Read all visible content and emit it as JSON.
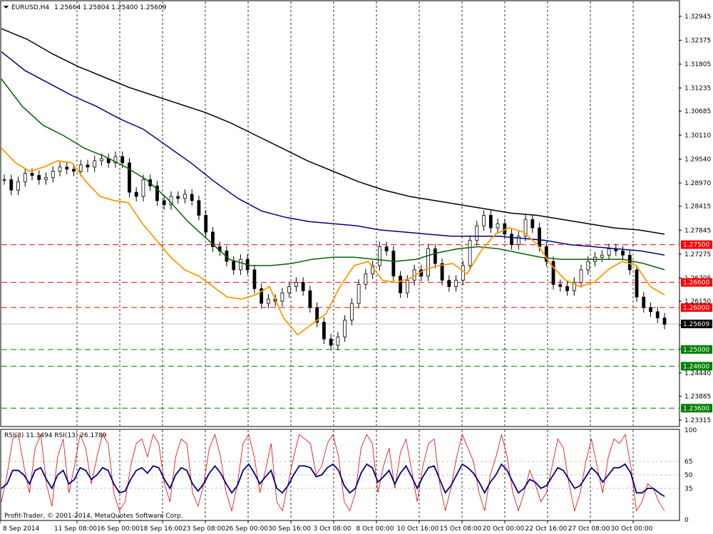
{
  "header": {
    "symbol": "EURUSD,H4",
    "ohlc": "1.25664 1.25804 1.25400 1.25609"
  },
  "rsi_header": "RSI(3) 11.3494  RSI(13) 26.1789",
  "footer": "Profit-Trader, © 2001-2014, MetaQuotes Software Corp.",
  "colors": {
    "ema_fast": "#ff9900",
    "ema_mid": "#006400",
    "ema_slow": "#000080",
    "ema_long": "#000000",
    "resistance": "#ff0000",
    "support": "#008000",
    "rsi_fast": "#e00000",
    "rsi_slow": "#000080"
  },
  "chart_data": {
    "type": "candlestick",
    "instrument": "EURUSD",
    "timeframe": "H4",
    "y_ticks": [
      "1.32945",
      "1.32375",
      "1.31805",
      "1.31235",
      "1.30685",
      "1.30110",
      "1.29540",
      "1.28970",
      "1.28415",
      "1.27845",
      "1.27275",
      "1.26705",
      "1.26150",
      "1.25580",
      "1.25010",
      "1.24440",
      "1.23885",
      "1.23315"
    ],
    "ylim": [
      1.2318,
      1.333
    ],
    "price_tags": [
      {
        "value": 1.275,
        "label": "1.27500",
        "kind": "resistance"
      },
      {
        "value": 1.266,
        "label": "1.26600",
        "kind": "resistance"
      },
      {
        "value": 1.26,
        "label": "1.26000",
        "kind": "resistance"
      },
      {
        "value": 1.25609,
        "label": "1.25609",
        "kind": "current"
      },
      {
        "value": 1.25,
        "label": "1.25000",
        "kind": "support"
      },
      {
        "value": 1.246,
        "label": "1.24600",
        "kind": "support"
      },
      {
        "value": 1.236,
        "label": "1.23600",
        "kind": "support"
      }
    ],
    "x_labels": [
      "8 Sep 2014",
      "11 Sep 08:00",
      "16 Sep 00:00",
      "18 Sep 16:00",
      "23 Sep 08:00",
      "26 Sep 00:00",
      "30 Sep 16:00",
      "3 Oct 08:00",
      "8 Oct 00:00",
      "10 Oct 16:00",
      "15 Oct 08:00",
      "20 Oct 00:00",
      "22 Oct 16:00",
      "27 Oct 08:00",
      "30 Oct 00:00"
    ],
    "close_path": [
      1.2905,
      1.288,
      1.29,
      1.292,
      1.2915,
      1.2905,
      1.291,
      1.2925,
      1.2935,
      1.293,
      1.2925,
      1.294,
      1.2935,
      1.295,
      1.2955,
      1.2945,
      1.296,
      1.2945,
      1.2875,
      1.2865,
      1.2905,
      1.289,
      1.2855,
      1.2845,
      1.2865,
      1.286,
      1.287,
      1.2855,
      1.282,
      1.278,
      1.2745,
      1.2735,
      1.271,
      1.269,
      1.2715,
      1.269,
      1.2645,
      1.261,
      1.262,
      1.2615,
      1.2635,
      1.265,
      1.266,
      1.264,
      1.26,
      1.2565,
      1.2525,
      1.251,
      1.253,
      1.257,
      1.261,
      1.2655,
      1.268,
      1.27,
      1.2745,
      1.2735,
      1.2675,
      1.2635,
      1.2665,
      1.269,
      1.2675,
      1.274,
      1.2705,
      1.2665,
      1.265,
      1.2665,
      1.27,
      1.276,
      1.2795,
      1.282,
      1.279,
      1.28,
      1.2775,
      1.275,
      1.277,
      1.281,
      1.279,
      1.2745,
      1.271,
      1.2655,
      1.265,
      1.264,
      1.266,
      1.269,
      1.271,
      1.272,
      1.2725,
      1.274,
      1.2735,
      1.2725,
      1.269,
      1.2625,
      1.26,
      1.259,
      1.2575,
      1.256
    ],
    "ema_fast": [
      1.298,
      1.2945,
      1.2925,
      1.2935,
      1.295,
      1.2945,
      1.29,
      1.2865,
      1.2855,
      1.285,
      1.28,
      1.276,
      1.272,
      1.269,
      1.2675,
      1.265,
      1.2625,
      1.262,
      1.263,
      1.265,
      1.2575,
      1.2535,
      1.256,
      1.2585,
      1.265,
      1.27,
      1.271,
      1.2665,
      1.266,
      1.267,
      1.269,
      1.27,
      1.2705,
      1.268,
      1.2735,
      1.2775,
      1.279,
      1.278,
      1.275,
      1.27,
      1.2665,
      1.265,
      1.266,
      1.269,
      1.271,
      1.27,
      1.265,
      1.263
    ],
    "ema_mid": [
      1.3145,
      1.308,
      1.3035,
      1.301,
      1.298,
      1.296,
      1.2935,
      1.2905,
      1.286,
      1.2805,
      1.276,
      1.2715,
      1.27,
      1.27,
      1.2705,
      1.2715,
      1.272,
      1.272,
      1.2715,
      1.271,
      1.2715,
      1.273,
      1.274,
      1.2745,
      1.274,
      1.273,
      1.272,
      1.2715,
      1.2715,
      1.2715,
      1.2715,
      1.2705,
      1.269
    ],
    "ema_slow": [
      1.321,
      1.3165,
      1.3135,
      1.3105,
      1.308,
      1.305,
      1.3025,
      1.2985,
      1.2945,
      1.29,
      1.286,
      1.283,
      1.2815,
      1.2805,
      1.28,
      1.2795,
      1.2785,
      1.278,
      1.2775,
      1.277,
      1.277,
      1.277,
      1.2765,
      1.276,
      1.275,
      1.2745,
      1.274,
      1.2735,
      1.2725
    ],
    "ema_long": [
      1.3265,
      1.324,
      1.3205,
      1.3175,
      1.315,
      1.3125,
      1.3105,
      1.3085,
      1.3065,
      1.304,
      1.301,
      1.298,
      1.295,
      1.2925,
      1.29,
      1.288,
      1.2865,
      1.2855,
      1.2845,
      1.2835,
      1.2825,
      1.282,
      1.281,
      1.28,
      1.279,
      1.2785,
      1.2775
    ],
    "rsi": {
      "ylim": [
        0,
        100
      ],
      "ticks": [
        100,
        65,
        50,
        35,
        0
      ],
      "levels": [
        65,
        50,
        35
      ],
      "rsi3_last": 11.3494,
      "rsi13_last": 26.1789,
      "rsi3": [
        20,
        50,
        90,
        95,
        60,
        30,
        80,
        95,
        40,
        15,
        70,
        90,
        30,
        60,
        95,
        80,
        40,
        70,
        95,
        85,
        30,
        10,
        20,
        60,
        85,
        90,
        70,
        95,
        85,
        40,
        20,
        70,
        90,
        85,
        30,
        15,
        40,
        80,
        95,
        70,
        30,
        10,
        40,
        85,
        95,
        70,
        30,
        55,
        85,
        20,
        10,
        40,
        70,
        95,
        90,
        85,
        50,
        60,
        85,
        95,
        70,
        20,
        10,
        30,
        80,
        95,
        85,
        30,
        60,
        80,
        35,
        75,
        90,
        55,
        20,
        60,
        85,
        90,
        40,
        10,
        35,
        70,
        95,
        80,
        65,
        30,
        10,
        50,
        70,
        95,
        70,
        30,
        10,
        30,
        55,
        40,
        20,
        30,
        60,
        90,
        80,
        40,
        10,
        30,
        65,
        90,
        60,
        30,
        70,
        90,
        85,
        95,
        60,
        10,
        20,
        40,
        35,
        20,
        10
      ],
      "rsi13": [
        35,
        40,
        55,
        55,
        50,
        40,
        55,
        58,
        45,
        35,
        50,
        55,
        40,
        45,
        58,
        55,
        45,
        50,
        58,
        55,
        40,
        30,
        32,
        45,
        55,
        58,
        52,
        60,
        58,
        45,
        35,
        50,
        58,
        55,
        40,
        32,
        40,
        52,
        60,
        52,
        40,
        30,
        38,
        55,
        62,
        52,
        40,
        48,
        55,
        35,
        30,
        38,
        50,
        60,
        60,
        58,
        48,
        50,
        58,
        62,
        55,
        38,
        30,
        35,
        52,
        62,
        58,
        42,
        48,
        55,
        40,
        52,
        60,
        48,
        35,
        48,
        58,
        60,
        45,
        30,
        38,
        50,
        62,
        58,
        52,
        42,
        30,
        42,
        50,
        62,
        55,
        42,
        30,
        35,
        45,
        42,
        35,
        38,
        48,
        58,
        55,
        45,
        35,
        38,
        48,
        58,
        52,
        42,
        50,
        58,
        58,
        62,
        52,
        30,
        30,
        35,
        35,
        30,
        26
      ]
    }
  }
}
